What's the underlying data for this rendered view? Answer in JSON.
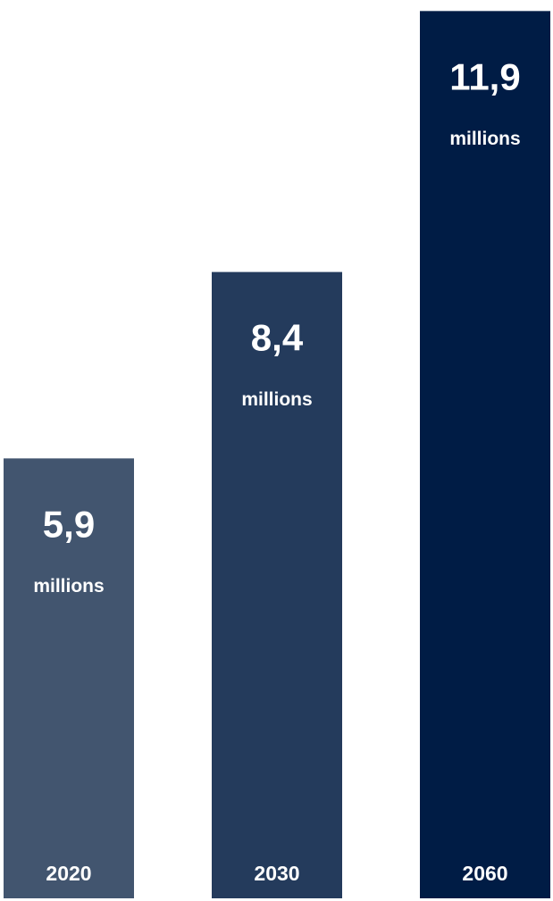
{
  "chart_data": {
    "type": "bar",
    "categories": [
      "2020",
      "2030",
      "2060"
    ],
    "values": [
      5.9,
      8.4,
      11.9
    ],
    "value_labels": [
      "5,9",
      "8,4",
      "11,9"
    ],
    "unit_label": "millions",
    "colors": [
      "#42556f",
      "#243b5c",
      "#001c45"
    ],
    "ylim": [
      0,
      12
    ]
  }
}
